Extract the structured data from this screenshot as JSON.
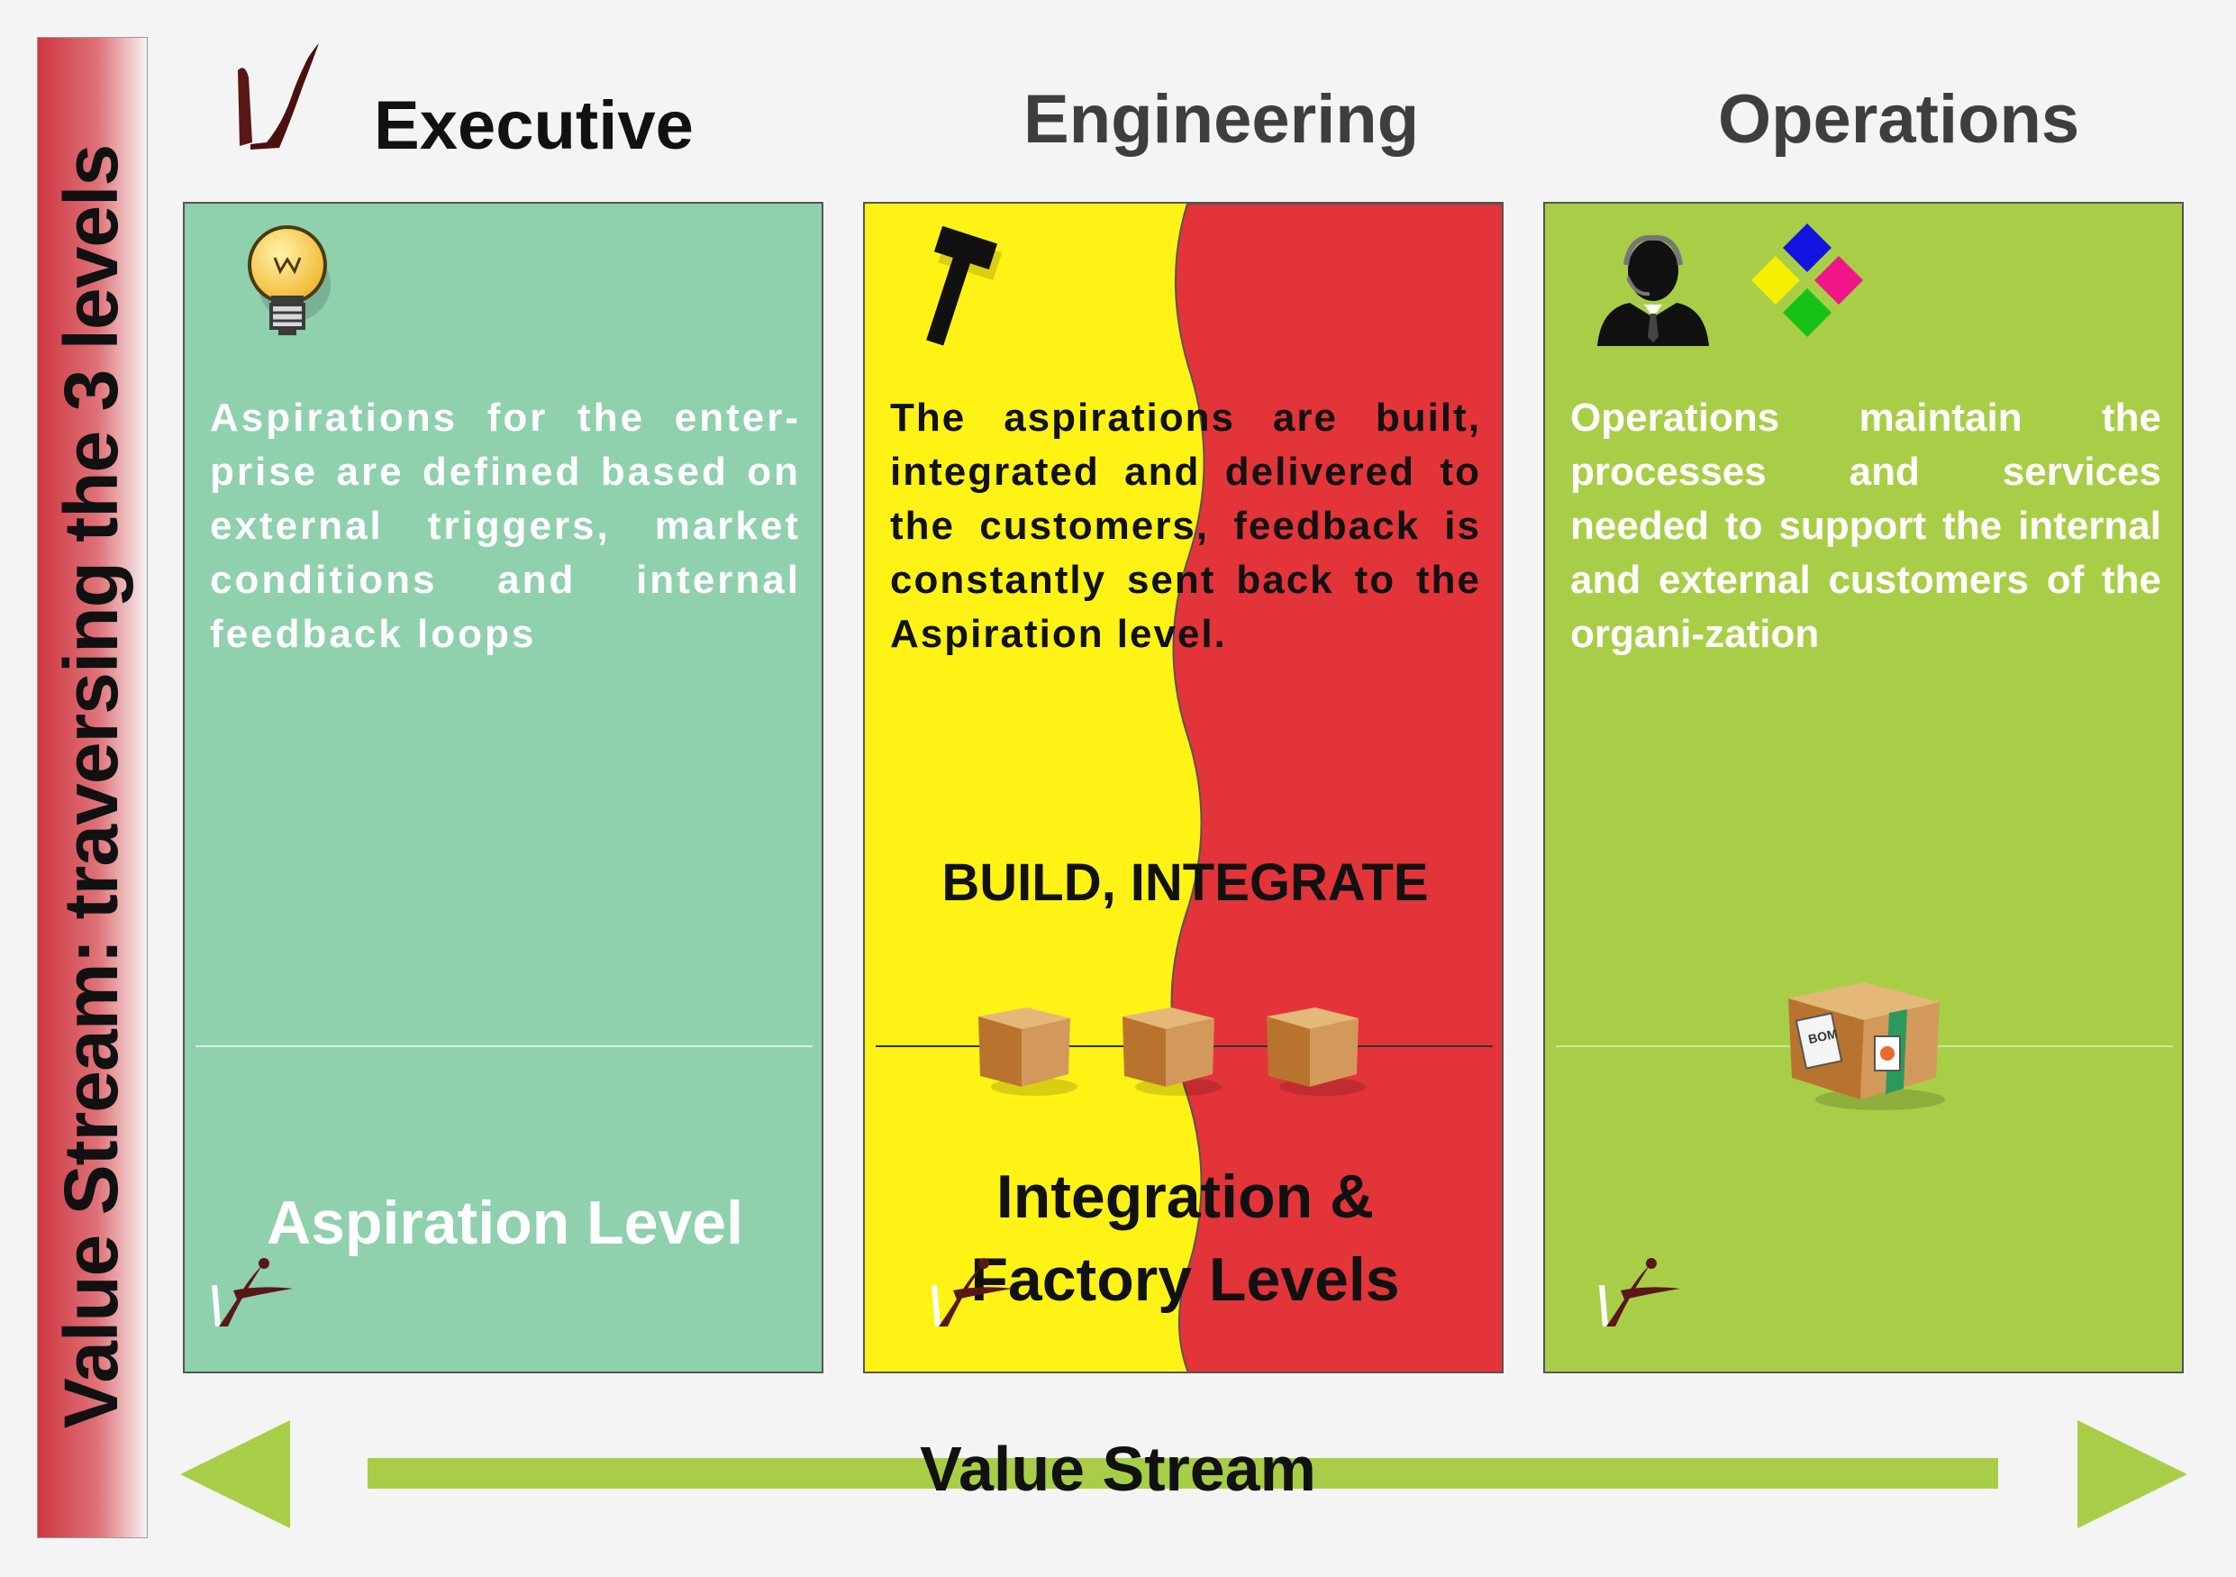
{
  "sidebar": {
    "title": "Value Stream: traversing the 3 levels"
  },
  "headers": {
    "executive": "Executive",
    "engineering": "Engineering",
    "operations": "Operations"
  },
  "panels": {
    "executive": {
      "text": "Aspirations for the enter-prise are defined based on external triggers, market conditions and internal feedback loops",
      "level": "Aspiration Level",
      "icon": "lightbulb-icon",
      "color": "#8fd0ad"
    },
    "engineering": {
      "text": "The aspirations are built, integrated and delivered to the customers, feedback is constantly sent back to the Aspiration level.",
      "action": "BUILD, INTEGRATE",
      "level": "Integration & Factory Levels",
      "icon": "hammer-icon",
      "colors": [
        "#fff215",
        "#e3343a"
      ]
    },
    "operations": {
      "text": "Operations maintain the processes and services needed to support the internal and external customers of the organi-zation",
      "icon": "support-agent-icon",
      "box_label": "BOM",
      "color": "#a8ce47"
    }
  },
  "footer": {
    "label": "Value Stream",
    "arrow_color": "#a8ce47"
  }
}
